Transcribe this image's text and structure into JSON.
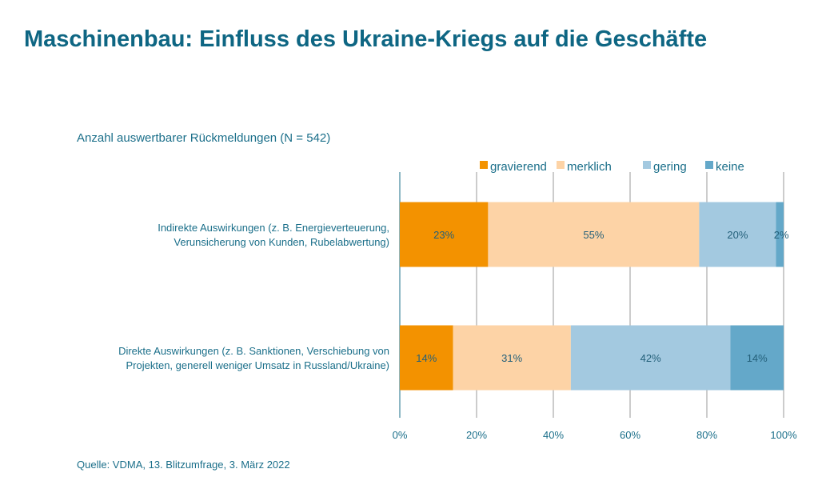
{
  "title": "Maschinenbau: Einfluss des Ukraine-Kriegs auf die Geschäfte",
  "subtitle": "Anzahl auswertbarer Rückmeldungen (N = 542)",
  "source": "Quelle: VDMA, 13. Blitzumfrage, 3. März 2022",
  "chart_data": {
    "type": "bar",
    "orientation": "horizontal",
    "stacked": true,
    "categories": [
      [
        "Indirekte Auswirkungen (z. B. Energieverteuerung,",
        "Verunsicherung von Kunden, Rubelabwertung)"
      ],
      [
        "Direkte Auswirkungen (z. B. Sanktionen, Verschiebung von",
        "Projekten, generell weniger Umsatz in Russland/Ukraine)"
      ]
    ],
    "series": [
      {
        "name": "gravierend",
        "values": [
          23,
          14
        ],
        "color": "#F39200"
      },
      {
        "name": "merklich",
        "values": [
          55,
          31
        ],
        "color": "#FDD3A6"
      },
      {
        "name": "gering",
        "values": [
          20,
          42
        ],
        "color": "#A3C9E0"
      },
      {
        "name": "keine",
        "values": [
          2,
          14
        ],
        "color": "#64A8C9"
      }
    ],
    "data_labels": [
      [
        "23%",
        "55%",
        "20%",
        "2%"
      ],
      [
        "14%",
        "31%",
        "42%",
        "14%"
      ]
    ],
    "xlim": [
      0,
      100
    ],
    "xticks": [
      "0%",
      "20%",
      "40%",
      "60%",
      "80%",
      "100%"
    ],
    "grid": "vertical",
    "legend": "top"
  }
}
